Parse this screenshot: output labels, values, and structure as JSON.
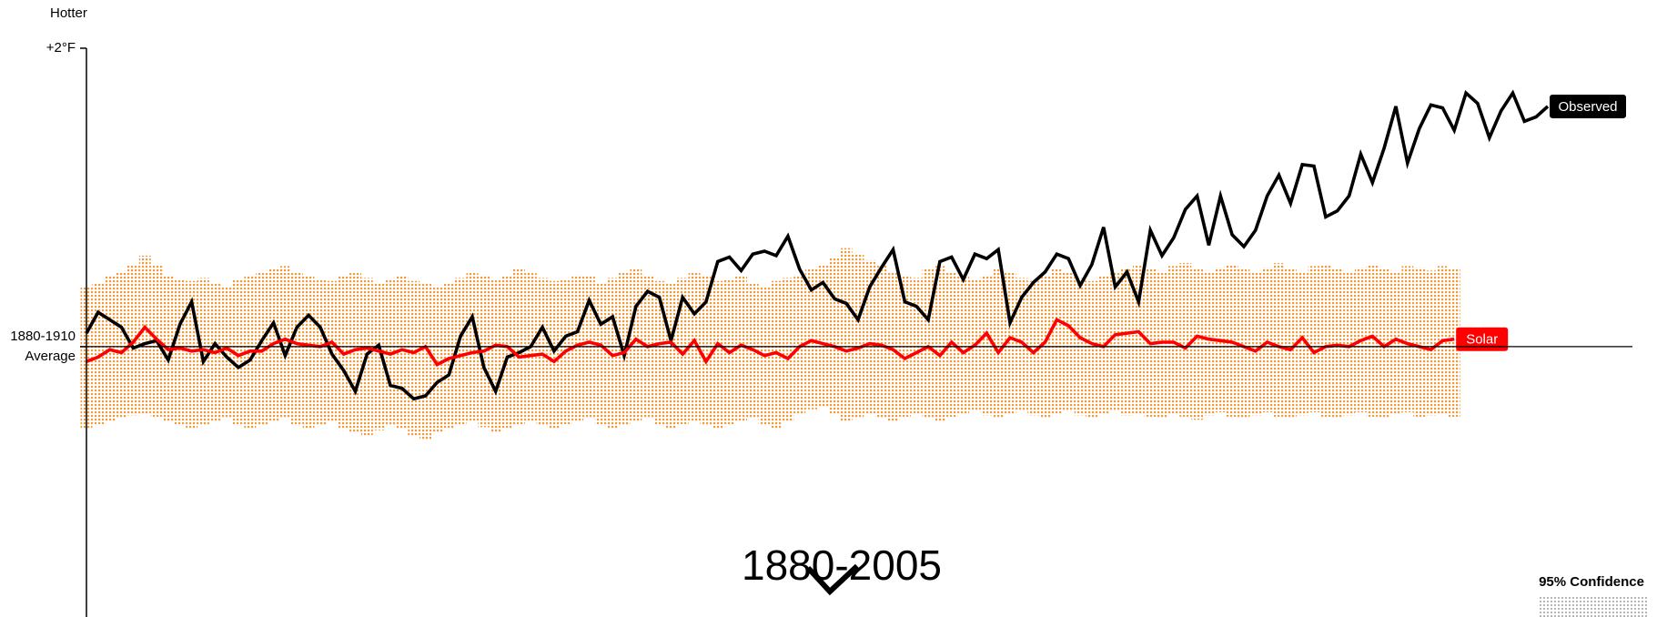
{
  "chart_data": {
    "type": "line",
    "title": "1880-2005",
    "ylabel": "Hotter",
    "x": [
      1880,
      1881,
      1882,
      1883,
      1884,
      1885,
      1886,
      1887,
      1888,
      1889,
      1890,
      1891,
      1892,
      1893,
      1894,
      1895,
      1896,
      1897,
      1898,
      1899,
      1900,
      1901,
      1902,
      1903,
      1904,
      1905,
      1906,
      1907,
      1908,
      1909,
      1910,
      1911,
      1912,
      1913,
      1914,
      1915,
      1916,
      1917,
      1918,
      1919,
      1920,
      1921,
      1922,
      1923,
      1924,
      1925,
      1926,
      1927,
      1928,
      1929,
      1930,
      1931,
      1932,
      1933,
      1934,
      1935,
      1936,
      1937,
      1938,
      1939,
      1940,
      1941,
      1942,
      1943,
      1944,
      1945,
      1946,
      1947,
      1948,
      1949,
      1950,
      1951,
      1952,
      1953,
      1954,
      1955,
      1956,
      1957,
      1958,
      1959,
      1960,
      1961,
      1962,
      1963,
      1964,
      1965,
      1966,
      1967,
      1968,
      1969,
      1970,
      1971,
      1972,
      1973,
      1974,
      1975,
      1976,
      1977,
      1978,
      1979,
      1980,
      1981,
      1982,
      1983,
      1984,
      1985,
      1986,
      1987,
      1988,
      1989,
      1990,
      1991,
      1992,
      1993,
      1994,
      1995,
      1996,
      1997,
      1998,
      1999,
      2000,
      2001,
      2002,
      2003,
      2004,
      2005
    ],
    "xlim": [
      1880,
      2005
    ],
    "ylim": [
      -1.8,
      2
    ],
    "yticks": [
      {
        "value": 2,
        "label": "+2°F"
      },
      {
        "value": 0,
        "label": "1880-1910 Average"
      }
    ],
    "series": [
      {
        "name": "Observed",
        "color": "#000000",
        "values": [
          0.09,
          0.23,
          0.18,
          0.13,
          -0.01,
          0.02,
          0.04,
          -0.09,
          0.15,
          0.3,
          -0.1,
          0.02,
          -0.07,
          -0.14,
          -0.09,
          0.04,
          0.16,
          -0.06,
          0.13,
          0.21,
          0.13,
          -0.05,
          -0.16,
          -0.3,
          -0.05,
          0.01,
          -0.26,
          -0.28,
          -0.35,
          -0.33,
          -0.24,
          -0.19,
          0.07,
          0.2,
          -0.14,
          -0.3,
          -0.07,
          -0.04,
          0.0,
          0.13,
          -0.03,
          0.07,
          0.1,
          0.31,
          0.15,
          0.2,
          -0.06,
          0.27,
          0.37,
          0.33,
          0.04,
          0.33,
          0.22,
          0.3,
          0.57,
          0.6,
          0.51,
          0.62,
          0.64,
          0.61,
          0.74,
          0.52,
          0.38,
          0.43,
          0.32,
          0.29,
          0.18,
          0.4,
          0.53,
          0.65,
          0.3,
          0.27,
          0.18,
          0.57,
          0.6,
          0.45,
          0.62,
          0.59,
          0.65,
          0.16,
          0.33,
          0.43,
          0.5,
          0.62,
          0.59,
          0.41,
          0.55,
          0.8,
          0.4,
          0.5,
          0.3,
          0.78,
          0.61,
          0.73,
          0.92,
          1.01,
          0.68,
          1.01,
          0.75,
          0.67,
          0.78,
          1.01,
          1.15,
          0.96,
          1.22,
          1.21,
          0.87,
          0.91,
          1.01,
          1.29,
          1.1,
          1.33,
          1.61,
          1.23,
          1.46,
          1.62,
          1.6,
          1.45,
          1.7,
          1.63,
          1.4,
          1.58,
          1.7,
          1.51,
          1.54,
          1.61
        ]
      },
      {
        "name": "Solar",
        "color": "#ff0000",
        "values": [
          -0.1,
          -0.07,
          -0.02,
          -0.04,
          0.03,
          0.13,
          0.05,
          -0.02,
          -0.01,
          -0.03,
          -0.02,
          -0.04,
          -0.01,
          -0.06,
          -0.03,
          -0.03,
          0.02,
          0.05,
          0.02,
          0.01,
          0.0,
          0.03,
          -0.05,
          -0.02,
          -0.01,
          -0.03,
          -0.05,
          -0.02,
          -0.04,
          0.0,
          -0.12,
          -0.08,
          -0.06,
          -0.04,
          -0.03,
          0.01,
          0.0,
          -0.07,
          -0.06,
          -0.05,
          -0.1,
          -0.03,
          0.01,
          0.03,
          0.01,
          -0.06,
          -0.04,
          0.05,
          0.0,
          0.02,
          0.03,
          -0.05,
          0.04,
          -0.1,
          0.02,
          -0.04,
          0.01,
          -0.02,
          -0.06,
          -0.04,
          -0.08,
          0.0,
          0.04,
          0.02,
          0.0,
          -0.03,
          -0.01,
          0.02,
          0.01,
          -0.02,
          -0.08,
          -0.04,
          0.0,
          -0.06,
          0.03,
          -0.04,
          0.01,
          0.09,
          -0.04,
          0.06,
          0.03,
          -0.04,
          0.03,
          0.18,
          0.14,
          0.06,
          0.02,
          0.0,
          0.08,
          0.09,
          0.1,
          0.02,
          0.03,
          0.03,
          -0.01,
          0.07,
          0.05,
          0.04,
          0.03,
          0.0,
          -0.03,
          0.03,
          0.0,
          -0.02,
          0.06,
          -0.04,
          0.0,
          0.01,
          0.0,
          0.04,
          0.07,
          0.0,
          0.05,
          0.02,
          0.0,
          -0.02,
          0.04,
          0.05,
          null,
          null,
          null,
          null,
          null,
          null,
          null,
          null
        ]
      }
    ],
    "band": {
      "name": "95% Confidence",
      "color": "#f29b3c",
      "upper": [
        0.4,
        0.43,
        0.48,
        0.5,
        0.55,
        0.61,
        0.55,
        0.48,
        0.45,
        0.44,
        0.46,
        0.42,
        0.4,
        0.45,
        0.48,
        0.5,
        0.52,
        0.54,
        0.5,
        0.47,
        0.45,
        0.44,
        0.48,
        0.5,
        0.46,
        0.43,
        0.45,
        0.47,
        0.44,
        0.42,
        0.4,
        0.43,
        0.46,
        0.5,
        0.48,
        0.45,
        0.47,
        0.52,
        0.5,
        0.46,
        0.44,
        0.45,
        0.48,
        0.47,
        0.43,
        0.46,
        0.5,
        0.52,
        0.48,
        0.44,
        0.42,
        0.46,
        0.5,
        0.48,
        0.44,
        0.45,
        0.47,
        0.42,
        0.4,
        0.44,
        0.46,
        0.48,
        0.52,
        0.55,
        0.6,
        0.66,
        0.62,
        0.58,
        0.55,
        0.5,
        0.48,
        0.46,
        0.52,
        0.54,
        0.5,
        0.47,
        0.45,
        0.48,
        0.52,
        0.5,
        0.46,
        0.44,
        0.48,
        0.52,
        0.5,
        0.46,
        0.44,
        0.47,
        0.5,
        0.52,
        0.55,
        0.52,
        0.5,
        0.54,
        0.56,
        0.52,
        0.5,
        0.53,
        0.55,
        0.52,
        0.5,
        0.53,
        0.56,
        0.52,
        0.5,
        0.54,
        0.55,
        0.52,
        0.5,
        0.53,
        0.55,
        0.52,
        0.5,
        0.54,
        0.53,
        0.51,
        0.54,
        0.52,
        null,
        null,
        null,
        null,
        null,
        null,
        null,
        null
      ],
      "lower": [
        -0.55,
        -0.52,
        -0.5,
        -0.48,
        -0.46,
        -0.45,
        -0.47,
        -0.5,
        -0.52,
        -0.55,
        -0.53,
        -0.5,
        -0.48,
        -0.52,
        -0.55,
        -0.53,
        -0.5,
        -0.48,
        -0.52,
        -0.55,
        -0.53,
        -0.5,
        -0.55,
        -0.58,
        -0.6,
        -0.56,
        -0.53,
        -0.55,
        -0.6,
        -0.62,
        -0.58,
        -0.55,
        -0.52,
        -0.5,
        -0.54,
        -0.58,
        -0.55,
        -0.52,
        -0.5,
        -0.53,
        -0.55,
        -0.52,
        -0.5,
        -0.48,
        -0.52,
        -0.55,
        -0.53,
        -0.5,
        -0.48,
        -0.52,
        -0.55,
        -0.52,
        -0.5,
        -0.53,
        -0.55,
        -0.52,
        -0.5,
        -0.48,
        -0.52,
        -0.55,
        -0.5,
        -0.45,
        -0.42,
        -0.4,
        -0.45,
        -0.5,
        -0.48,
        -0.45,
        -0.48,
        -0.5,
        -0.47,
        -0.45,
        -0.48,
        -0.5,
        -0.47,
        -0.45,
        -0.43,
        -0.46,
        -0.48,
        -0.45,
        -0.43,
        -0.46,
        -0.48,
        -0.45,
        -0.43,
        -0.46,
        -0.48,
        -0.45,
        -0.43,
        -0.46,
        -0.45,
        -0.47,
        -0.48,
        -0.45,
        -0.47,
        -0.49,
        -0.46,
        -0.44,
        -0.47,
        -0.48,
        -0.46,
        -0.44,
        -0.47,
        -0.48,
        -0.46,
        -0.44,
        -0.47,
        -0.48,
        -0.46,
        -0.44,
        -0.47,
        -0.48,
        -0.45,
        -0.44,
        -0.47,
        -0.46,
        -0.45,
        -0.47,
        null,
        null,
        null,
        null,
        null,
        null,
        null,
        null
      ]
    }
  }
}
